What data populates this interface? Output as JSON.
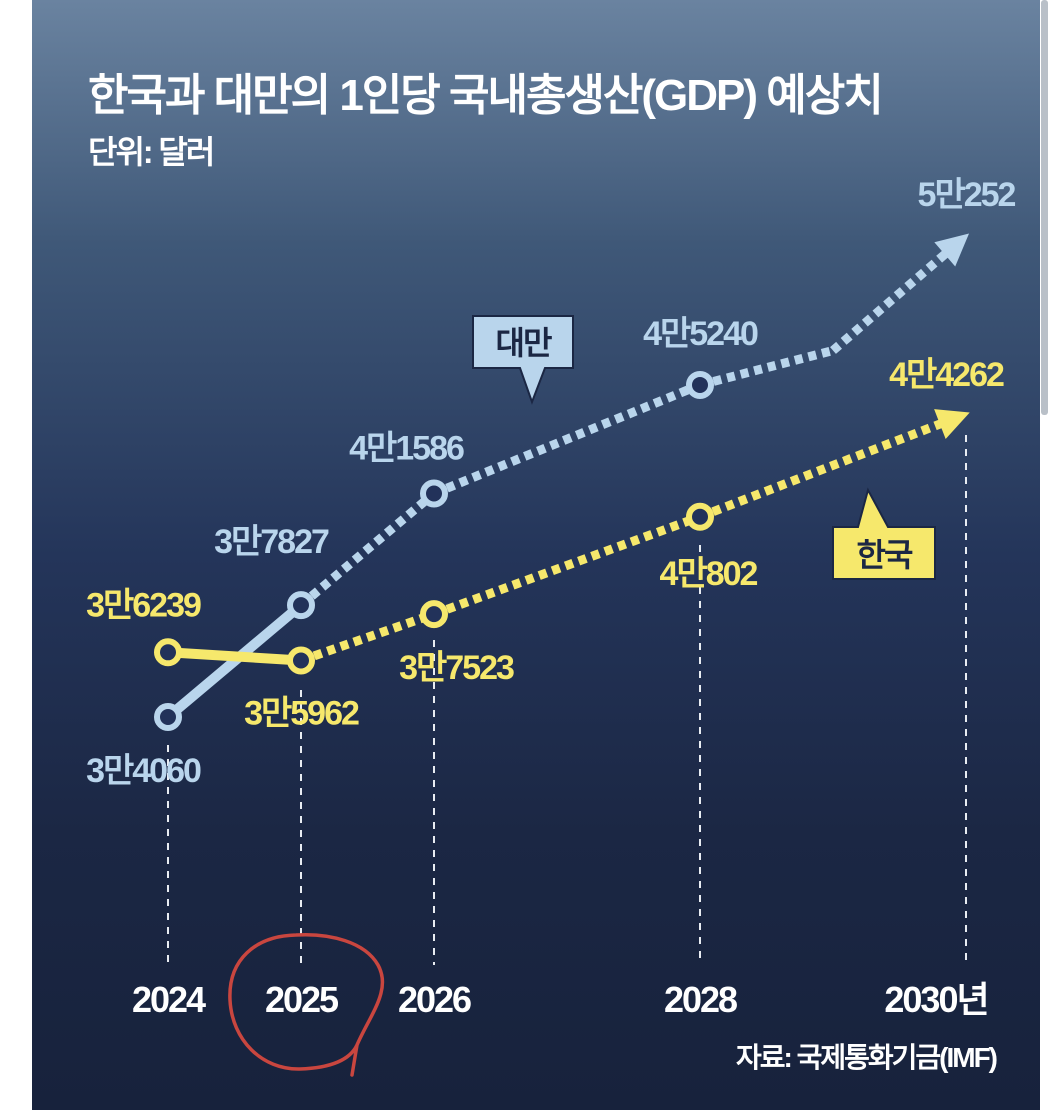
{
  "chart_data": {
    "type": "line",
    "title": "한국과 대만의 1인당 국내총생산(GDP) 예상치",
    "subtitle": "단위: 달러",
    "source": "자료: 국제통화기금(IMF)",
    "x_tick_labels": [
      "2024",
      "2025",
      "2026",
      "2028",
      "2030년"
    ],
    "x_ticks": [
      2024,
      2025,
      2026,
      2028,
      2030
    ],
    "series": [
      {
        "name": "대만",
        "color": "#b9d5ec",
        "points": [
          {
            "x": 2024,
            "y": 34060,
            "label": "3만4060"
          },
          {
            "x": 2025,
            "y": 37827,
            "label": "3만7827"
          },
          {
            "x": 2026,
            "y": 41586,
            "label": "4만1586"
          },
          {
            "x": 2028,
            "y": 45240,
            "label": "4만5240"
          },
          {
            "x": 2029,
            "y": 46400,
            "label": ""
          },
          {
            "x": 2030,
            "y": 50252,
            "label": "5만252"
          }
        ]
      },
      {
        "name": "한국",
        "color": "#f6e86c",
        "points": [
          {
            "x": 2024,
            "y": 36239,
            "label": "3만6239"
          },
          {
            "x": 2025,
            "y": 35962,
            "label": "3만5962"
          },
          {
            "x": 2026,
            "y": 37523,
            "label": "3만7523"
          },
          {
            "x": 2028,
            "y": 40802,
            "label": "4만802"
          },
          {
            "x": 2030,
            "y": 44262,
            "label": "4만4262"
          }
        ]
      }
    ],
    "annotation_color": "#c9463f",
    "grid": false,
    "legend": "callout bubbles"
  }
}
